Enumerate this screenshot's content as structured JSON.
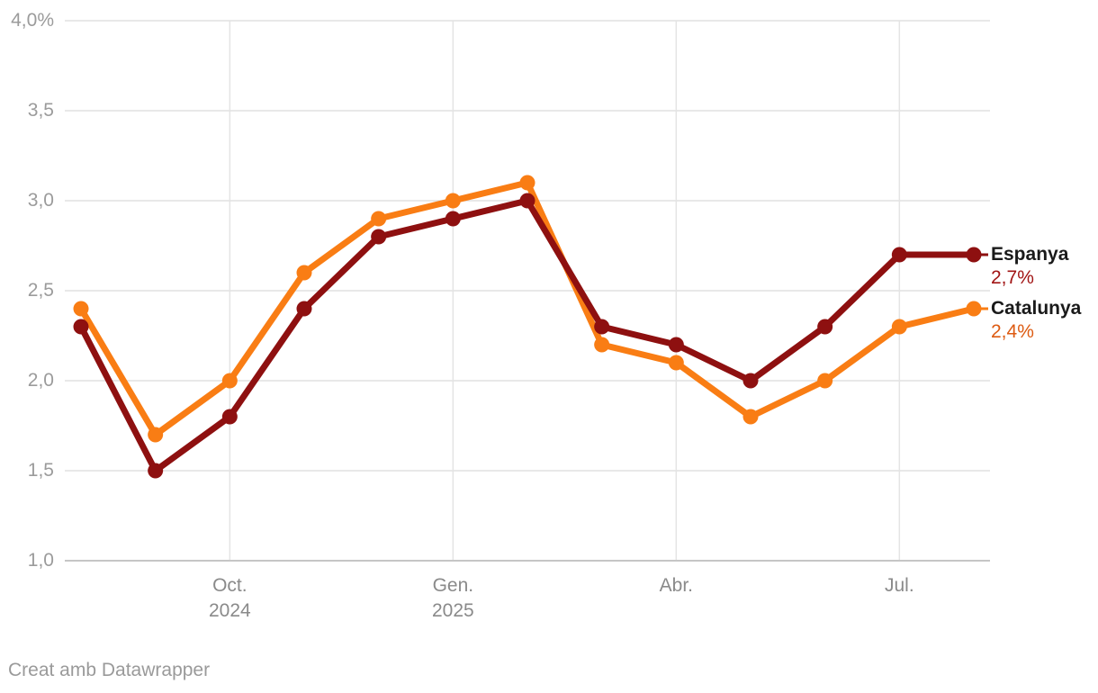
{
  "chart_data": {
    "type": "line",
    "unit": "%",
    "ylim": [
      1.0,
      4.0
    ],
    "grid": true,
    "legend_position": "direct-labels-right",
    "n_points": 13,
    "y_ticks": [
      {
        "value": 4.0,
        "label": "4,0%"
      },
      {
        "value": 3.5,
        "label": "3,5"
      },
      {
        "value": 3.0,
        "label": "3,0"
      },
      {
        "value": 2.5,
        "label": "2,5"
      },
      {
        "value": 2.0,
        "label": "2,0"
      },
      {
        "value": 1.5,
        "label": "1,5"
      },
      {
        "value": 1.0,
        "label": "1,0"
      }
    ],
    "x_ticks": [
      {
        "index": 2,
        "label": "Oct.",
        "year": "2024"
      },
      {
        "index": 5,
        "label": "Gen.",
        "year": "2025"
      },
      {
        "index": 8,
        "label": "Abr.",
        "year": ""
      },
      {
        "index": 11,
        "label": "Jul.",
        "year": ""
      }
    ],
    "series": [
      {
        "name": "Espanya",
        "current_value_label": "2,7%",
        "color": "#8E1010",
        "label_color": "#A11414",
        "values": [
          2.3,
          1.5,
          1.8,
          2.4,
          2.8,
          2.9,
          3.0,
          2.3,
          2.2,
          2.0,
          2.3,
          2.7,
          2.7
        ]
      },
      {
        "name": "Catalunya",
        "current_value_label": "2,4%",
        "color": "#F97D14",
        "label_color": "#DD5B12",
        "values": [
          2.4,
          1.7,
          2.0,
          2.6,
          2.9,
          3.0,
          3.1,
          2.2,
          2.1,
          1.8,
          2.0,
          2.3,
          2.4
        ]
      }
    ],
    "axis_colors": {
      "y_tick_text": "#9B9B9B",
      "x_tick_text": "#8A8A8A",
      "gridline": "#E0E0E0",
      "baseline": "#C6C6C6"
    }
  },
  "footer": {
    "credit": "Creat amb Datawrapper"
  }
}
